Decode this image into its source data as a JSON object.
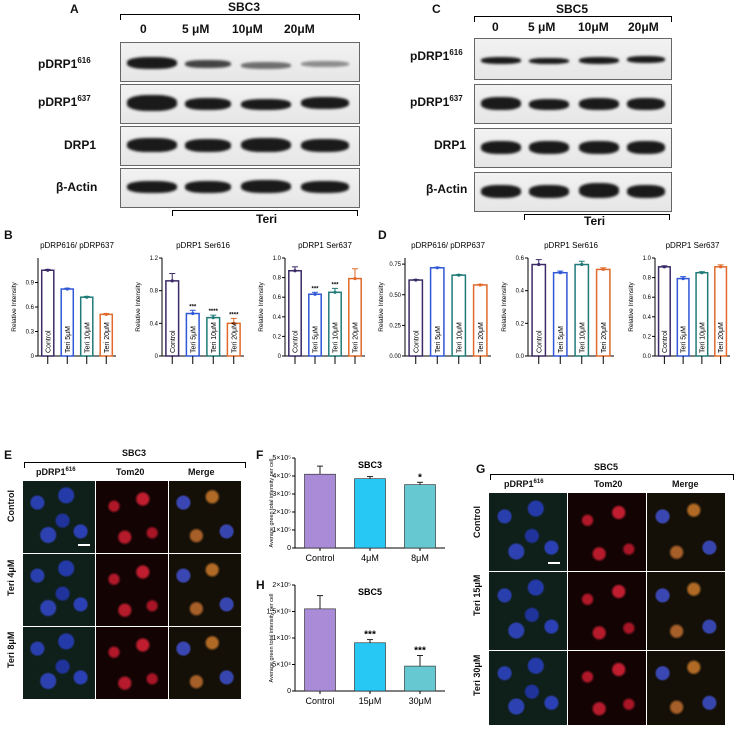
{
  "panels": {
    "A": "A",
    "B": "B",
    "C": "C",
    "D": "D",
    "E": "E",
    "F": "F",
    "G": "G",
    "H": "H"
  },
  "blotA": {
    "title": "SBC3",
    "conc": [
      "0",
      "5 μM",
      "10μM",
      "20μM"
    ],
    "rows": [
      {
        "main": "pDRP1",
        "sup": "616"
      },
      {
        "main": "pDRP1",
        "sup": "637"
      },
      {
        "main": "DRP1",
        "sup": ""
      },
      {
        "main": "β-Actin",
        "sup": ""
      }
    ],
    "teri": "Teri"
  },
  "blotC": {
    "title": "SBC5",
    "conc": [
      "0",
      "5 μM",
      "10μM",
      "20μM"
    ],
    "rows": [
      {
        "main": "pDRP1",
        "sup": "616"
      },
      {
        "main": "pDRP1",
        "sup": "637"
      },
      {
        "main": "DRP1",
        "sup": ""
      },
      {
        "main": "β-Actin",
        "sup": ""
      }
    ],
    "teri": "Teri"
  },
  "colors": {
    "control": "#3b2a66",
    "teri5": "#2f57d6",
    "teri10": "#1f7a78",
    "teri20": "#e06a2a",
    "purple": "#a98bd8",
    "cyan": "#28c8f5",
    "teal": "#66c8d0"
  },
  "chart_data": [
    {
      "id": "B1",
      "type": "bar",
      "title": "pDRP616/ pDRP637",
      "ylabel": "Relative Intensity",
      "categories": [
        "Control",
        "Teri 5μM",
        "Teri 10μM",
        "Teri 20μM"
      ],
      "values": [
        1.05,
        0.82,
        0.72,
        0.51
      ],
      "err": [
        0.01,
        0.01,
        0.01,
        0.01
      ],
      "ylim": [
        0,
        1.2
      ],
      "yticks": [
        "0",
        "0.3",
        "0.6",
        "0.9"
      ],
      "ytickvals": [
        0,
        0.3,
        0.6,
        0.9
      ],
      "stars": [
        "",
        "",
        "",
        ""
      ]
    },
    {
      "id": "B2",
      "type": "bar",
      "title": "pDRP1 Ser616",
      "ylabel": "Relative Intensity",
      "categories": [
        "Control",
        "Teri 5μM",
        "Teri 10μM",
        "Teri 20μM"
      ],
      "values": [
        0.92,
        0.52,
        0.47,
        0.4
      ],
      "err": [
        0.09,
        0.04,
        0.03,
        0.06
      ],
      "ylim": [
        0,
        1.2
      ],
      "yticks": [
        "0",
        "0.4",
        "0.8",
        "1.2"
      ],
      "ytickvals": [
        0,
        0.4,
        0.8,
        1.2
      ],
      "stars": [
        "",
        "***",
        "****",
        "****"
      ]
    },
    {
      "id": "B3",
      "type": "bar",
      "title": "pDRP1 Ser637",
      "ylabel": "Relative Intensity",
      "categories": [
        "Control",
        "Teri 5μM",
        "Teri 10μM",
        "Teri 20μM"
      ],
      "values": [
        0.87,
        0.63,
        0.65,
        0.79
      ],
      "err": [
        0.04,
        0.02,
        0.04,
        0.1
      ],
      "ylim": [
        0,
        1.0
      ],
      "yticks": [
        "0",
        "0.2",
        "0.4",
        "0.6",
        "0.8",
        "1.0"
      ],
      "ytickvals": [
        0,
        0.2,
        0.4,
        0.6,
        0.8,
        1.0
      ],
      "stars": [
        "",
        "***",
        "***",
        ""
      ]
    },
    {
      "id": "D1",
      "type": "bar",
      "title": "pDRP616/ pDRP637",
      "ylabel": "Relative Intensity",
      "categories": [
        "Control",
        "Teri 5μM",
        "Teri 10μM",
        "Teri 20μM"
      ],
      "values": [
        0.62,
        0.72,
        0.66,
        0.58
      ],
      "err": [
        0.005,
        0.005,
        0.005,
        0.005
      ],
      "ylim": [
        0,
        0.8
      ],
      "yticks": [
        "0.00",
        "0.25",
        "0.50",
        "0.75"
      ],
      "ytickvals": [
        0,
        0.25,
        0.5,
        0.75
      ],
      "stars": [
        "",
        "",
        "",
        ""
      ]
    },
    {
      "id": "D2",
      "type": "bar",
      "title": "pDRP1 Ser616",
      "ylabel": "Relative Intensity",
      "categories": [
        "Control",
        "Teri 5μM",
        "Teri 10μM",
        "Teri 20μM"
      ],
      "values": [
        0.56,
        0.51,
        0.56,
        0.53
      ],
      "err": [
        0.03,
        0.01,
        0.02,
        0.01
      ],
      "ylim": [
        0,
        0.6
      ],
      "yticks": [
        "0.0",
        "0.2",
        "0.4",
        "0.6"
      ],
      "ytickvals": [
        0,
        0.2,
        0.4,
        0.6
      ],
      "stars": [
        "",
        "",
        "",
        ""
      ]
    },
    {
      "id": "D3",
      "type": "bar",
      "title": "pDRP1 Ser637",
      "ylabel": "Relative Intensity",
      "categories": [
        "Control",
        "Teri 5μM",
        "Teri 10μM",
        "Teri 20μM"
      ],
      "values": [
        0.91,
        0.79,
        0.85,
        0.91
      ],
      "err": [
        0.01,
        0.02,
        0.01,
        0.02
      ],
      "ylim": [
        0,
        1.0
      ],
      "yticks": [
        "0.0",
        "0.2",
        "0.4",
        "0.6",
        "0.8",
        "1.0"
      ],
      "ytickvals": [
        0,
        0.2,
        0.4,
        0.6,
        0.8,
        1.0
      ],
      "stars": [
        "",
        "",
        "",
        ""
      ]
    },
    {
      "id": "F",
      "type": "bar",
      "title": "SBC3",
      "ylabel": "Average green total intensity per cell",
      "categories": [
        "Control",
        "4μM",
        "8μM"
      ],
      "values": [
        410000,
        385000,
        352000
      ],
      "err": [
        45000,
        12000,
        13000
      ],
      "ylim": [
        0,
        500000
      ],
      "yticks": [
        "0",
        "1×10⁵",
        "2×10⁵",
        "3×10⁵",
        "4×10⁵",
        "5×10⁵"
      ],
      "ytickvals": [
        0,
        100000,
        200000,
        300000,
        400000,
        500000
      ],
      "stars": [
        "",
        "",
        "*"
      ]
    },
    {
      "id": "H",
      "type": "bar",
      "title": "SBC5",
      "ylabel": "Average green total intensity per cell",
      "categories": [
        "Control",
        "15μM",
        "30μM"
      ],
      "values": [
        155000,
        91000,
        47000
      ],
      "err": [
        25000,
        6000,
        20000
      ],
      "ylim": [
        0,
        200000
      ],
      "yticks": [
        "0",
        "5×10⁴",
        "1×10⁵",
        "1.5×10⁵",
        "2×10⁵"
      ],
      "ytickvals": [
        0,
        50000,
        100000,
        150000,
        200000
      ],
      "stars": [
        "",
        "***",
        "***"
      ]
    }
  ],
  "imagingE": {
    "title": "SBC3",
    "cols": [
      "pDRP1",
      "Tom20",
      "Merge"
    ],
    "col_sup": [
      "616",
      "",
      ""
    ],
    "rows": [
      "Control",
      "Teri 4μM",
      "Teri 8μM"
    ]
  },
  "imagingG": {
    "title": "SBC5",
    "cols": [
      "pDRP1",
      "Tom20",
      "Merge"
    ],
    "col_sup": [
      "616",
      "",
      ""
    ],
    "rows": [
      "Control",
      "Teri 15μM",
      "Teri 30μM"
    ]
  }
}
